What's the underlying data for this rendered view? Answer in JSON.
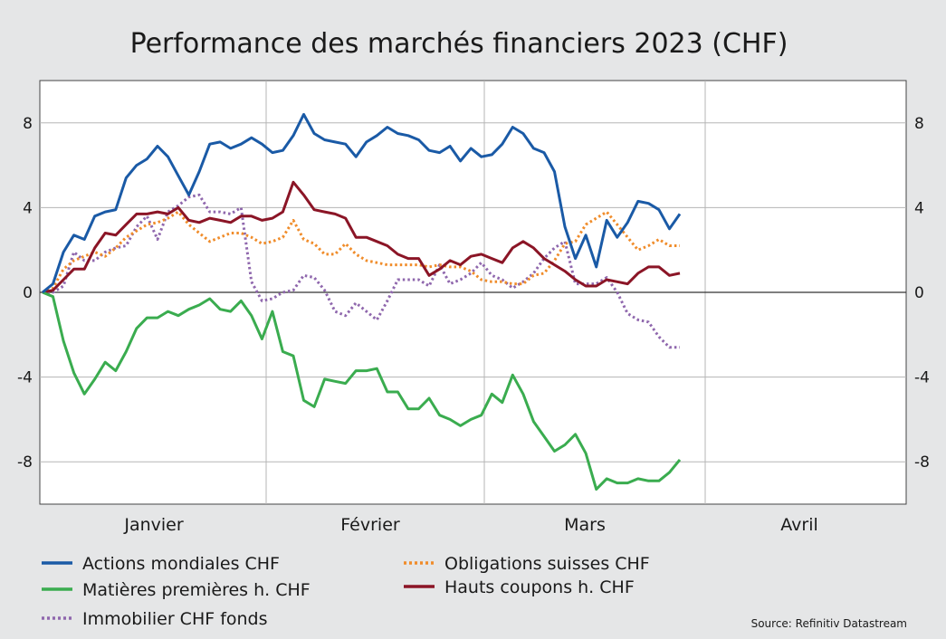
{
  "chart_data": {
    "type": "line",
    "title": "Performance des marchés financiers 2023 (CHF)",
    "source": "Source: Refinitiv Datastream",
    "ylim": [
      -10,
      10
    ],
    "yticks": [
      8,
      4,
      0,
      -4,
      -8
    ],
    "ytick_labels": [
      "8",
      "4",
      "0",
      "-4",
      "-8"
    ],
    "months": [
      "Janvier",
      "Février",
      "Mars",
      "Avril"
    ],
    "grid": true,
    "legend_placement": "bottom",
    "n_points": 62,
    "series": [
      {
        "name": "Actions mondiales CHF",
        "color": "#1a5aa6",
        "dash": "solid",
        "values": [
          0,
          0.4,
          1.9,
          2.7,
          2.5,
          3.6,
          3.8,
          3.9,
          5.4,
          6,
          6.3,
          6.9,
          6.4,
          5.5,
          4.6,
          5.7,
          7,
          7.1,
          6.8,
          7,
          7.3,
          7,
          6.6,
          6.7,
          7.4,
          8.4,
          7.5,
          7.2,
          7.1,
          7,
          6.4,
          7.1,
          7.4,
          7.8,
          7.5,
          7.4,
          7.2,
          6.7,
          6.6,
          6.9,
          6.2,
          6.8,
          6.4,
          6.5,
          7,
          7.8,
          7.5,
          6.8,
          6.6,
          5.7,
          3.1,
          1.6,
          2.7,
          1.2,
          3.4,
          2.6,
          3.3,
          4.3,
          4.2,
          3.9,
          3,
          3.7
        ]
      },
      {
        "name": "Matières premières h. CHF",
        "color": "#3aac4f",
        "dash": "solid",
        "values": [
          0,
          -0.2,
          -2.3,
          -3.8,
          -4.8,
          -4.1,
          -3.3,
          -3.7,
          -2.8,
          -1.7,
          -1.2,
          -1.2,
          -0.9,
          -1.1,
          -0.8,
          -0.6,
          -0.3,
          -0.8,
          -0.9,
          -0.4,
          -1.1,
          -2.2,
          -0.9,
          -2.8,
          -3,
          -5.1,
          -5.4,
          -4.1,
          -4.2,
          -4.3,
          -3.7,
          -3.7,
          -3.6,
          -4.7,
          -4.7,
          -5.5,
          -5.5,
          -5,
          -5.8,
          -6,
          -6.3,
          -6,
          -5.8,
          -4.8,
          -5.2,
          -3.9,
          -4.8,
          -6.1,
          -6.8,
          -7.5,
          -7.2,
          -6.7,
          -7.6,
          -9.3,
          -8.8,
          -9,
          -9,
          -8.8,
          -8.9,
          -8.9,
          -8.5,
          -7.9
        ]
      },
      {
        "name": "Immobilier CHF fonds",
        "color": "#8f67ad",
        "dash": "dot",
        "values": [
          0,
          0,
          0.3,
          1.9,
          1.5,
          1.5,
          1.9,
          2.1,
          2.2,
          3.1,
          3.6,
          2.5,
          3.8,
          4.1,
          4.5,
          4.6,
          3.8,
          3.8,
          3.7,
          4,
          0.5,
          -0.4,
          -0.3,
          0,
          0.1,
          0.8,
          0.7,
          0.1,
          -0.9,
          -1.1,
          -0.5,
          -0.9,
          -1.3,
          -0.4,
          0.6,
          0.6,
          0.6,
          0.3,
          1.3,
          0.4,
          0.6,
          0.9,
          1.4,
          0.8,
          0.6,
          0.2,
          0.5,
          0.9,
          1.6,
          2.1,
          2.4,
          0.4,
          0.4,
          0.4,
          0.7,
          0,
          -1,
          -1.3,
          -1.4,
          -2.1,
          -2.6,
          -2.6
        ]
      },
      {
        "name": "Obligations suisses CHF",
        "color": "#f08c2a",
        "dash": "dot",
        "values": [
          0,
          0.2,
          1.1,
          1.5,
          1.7,
          1.9,
          1.7,
          2.1,
          2.6,
          2.9,
          3.2,
          3.3,
          3.5,
          3.8,
          3.2,
          2.8,
          2.4,
          2.6,
          2.8,
          2.8,
          2.6,
          2.3,
          2.4,
          2.6,
          3.4,
          2.5,
          2.3,
          1.8,
          1.8,
          2.3,
          1.8,
          1.5,
          1.4,
          1.3,
          1.3,
          1.3,
          1.3,
          1.2,
          1.3,
          1.2,
          1.2,
          1,
          0.6,
          0.5,
          0.5,
          0.4,
          0.4,
          0.8,
          0.9,
          1.5,
          2.3,
          2.4,
          3.2,
          3.5,
          3.8,
          3.2,
          2.6,
          2,
          2.2,
          2.5,
          2.2,
          2.2
        ]
      },
      {
        "name": "Hauts coupons h. CHF",
        "color": "#8b1526",
        "dash": "solid",
        "values": [
          0,
          0.1,
          0.6,
          1.1,
          1.1,
          2.1,
          2.8,
          2.7,
          3.2,
          3.7,
          3.7,
          3.8,
          3.7,
          4,
          3.4,
          3.3,
          3.5,
          3.4,
          3.3,
          3.6,
          3.6,
          3.4,
          3.5,
          3.8,
          5.2,
          4.6,
          3.9,
          3.8,
          3.7,
          3.5,
          2.6,
          2.6,
          2.4,
          2.2,
          1.8,
          1.6,
          1.6,
          0.8,
          1.1,
          1.5,
          1.3,
          1.7,
          1.8,
          1.6,
          1.4,
          2.1,
          2.4,
          2.1,
          1.6,
          1.3,
          1,
          0.6,
          0.3,
          0.3,
          0.6,
          0.5,
          0.4,
          0.9,
          1.2,
          1.2,
          0.8,
          0.9
        ]
      }
    ]
  }
}
